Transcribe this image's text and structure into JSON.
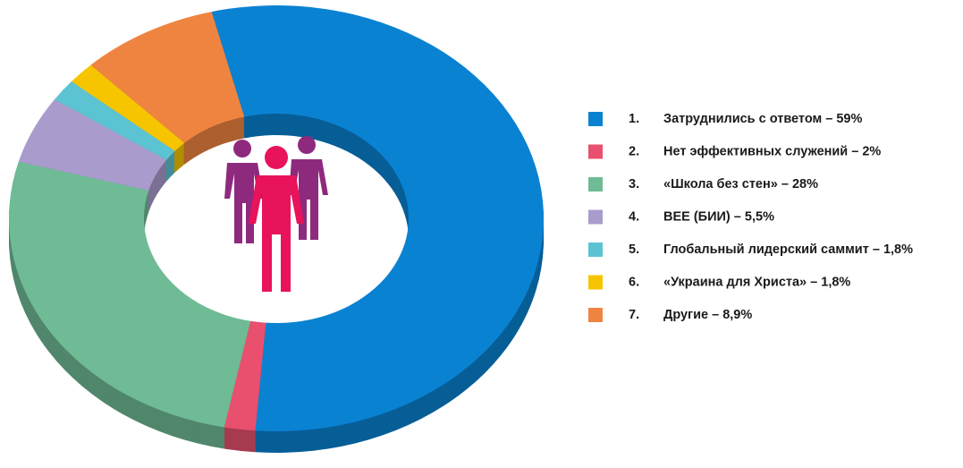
{
  "chart_data": {
    "type": "pie",
    "categories": [
      "Затруднились с ответом",
      "Нет эффективных служений",
      "«Школа без стен»",
      "BEE  (БИИ)",
      "Глобальный лидерский саммит",
      "«Украина для Христа»",
      "Другие"
    ],
    "legend_numbers": [
      "1.",
      "2.",
      "3.",
      "4.",
      "5.",
      "6.",
      "7."
    ],
    "legend_separator": "–",
    "values": [
      59,
      2,
      28,
      5.5,
      1.8,
      1.8,
      8.9
    ],
    "value_labels": [
      "59%",
      "2%",
      "28%",
      "5,5%",
      "1,8%",
      "1,8%",
      "8,9%"
    ],
    "colors": [
      "#0a82d2",
      "#e8506e",
      "#6fbb96",
      "#a99ccd",
      "#5cc3d3",
      "#f6c500",
      "#ef8441"
    ],
    "donut": true,
    "legend": "right"
  }
}
